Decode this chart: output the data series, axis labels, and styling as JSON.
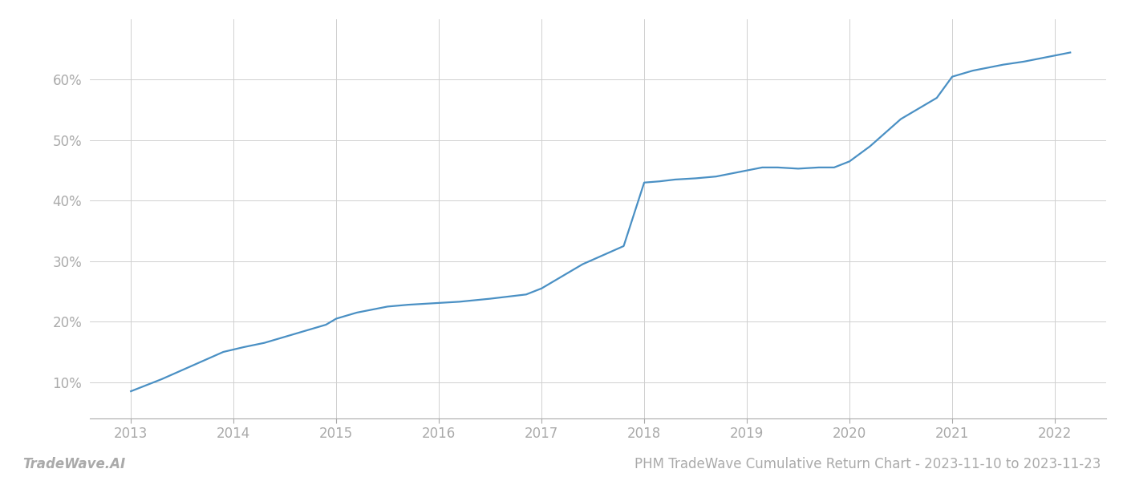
{
  "title": "PHM TradeWave Cumulative Return Chart - 2023-11-10 to 2023-11-23",
  "watermark": "TradeWave.AI",
  "line_color": "#4a90c4",
  "background_color": "#ffffff",
  "grid_color": "#d0d0d0",
  "x_values": [
    2013.0,
    2013.15,
    2013.3,
    2013.5,
    2013.7,
    2013.9,
    2014.1,
    2014.3,
    2014.5,
    2014.7,
    2014.9,
    2015.0,
    2015.2,
    2015.5,
    2015.7,
    2015.9,
    2016.0,
    2016.2,
    2016.5,
    2016.7,
    2016.85,
    2017.0,
    2017.2,
    2017.4,
    2017.6,
    2017.8,
    2018.0,
    2018.15,
    2018.3,
    2018.5,
    2018.7,
    2018.85,
    2019.0,
    2019.15,
    2019.3,
    2019.5,
    2019.7,
    2019.85,
    2020.0,
    2020.2,
    2020.5,
    2020.7,
    2020.85,
    2021.0,
    2021.2,
    2021.5,
    2021.7,
    2021.85,
    2022.0,
    2022.15
  ],
  "y_values": [
    8.5,
    9.5,
    10.5,
    12.0,
    13.5,
    15.0,
    15.8,
    16.5,
    17.5,
    18.5,
    19.5,
    20.5,
    21.5,
    22.5,
    22.8,
    23.0,
    23.1,
    23.3,
    23.8,
    24.2,
    24.5,
    25.5,
    27.5,
    29.5,
    31.0,
    32.5,
    43.0,
    43.2,
    43.5,
    43.7,
    44.0,
    44.5,
    45.0,
    45.5,
    45.5,
    45.3,
    45.5,
    45.5,
    46.5,
    49.0,
    53.5,
    55.5,
    57.0,
    60.5,
    61.5,
    62.5,
    63.0,
    63.5,
    64.0,
    64.5
  ],
  "xlim": [
    2012.6,
    2022.5
  ],
  "ylim": [
    4,
    70
  ],
  "yticks": [
    10,
    20,
    30,
    40,
    50,
    60
  ],
  "xticks": [
    2013,
    2014,
    2015,
    2016,
    2017,
    2018,
    2019,
    2020,
    2021,
    2022
  ],
  "tick_fontsize": 12,
  "title_fontsize": 12,
  "watermark_fontsize": 12,
  "line_width": 1.6
}
